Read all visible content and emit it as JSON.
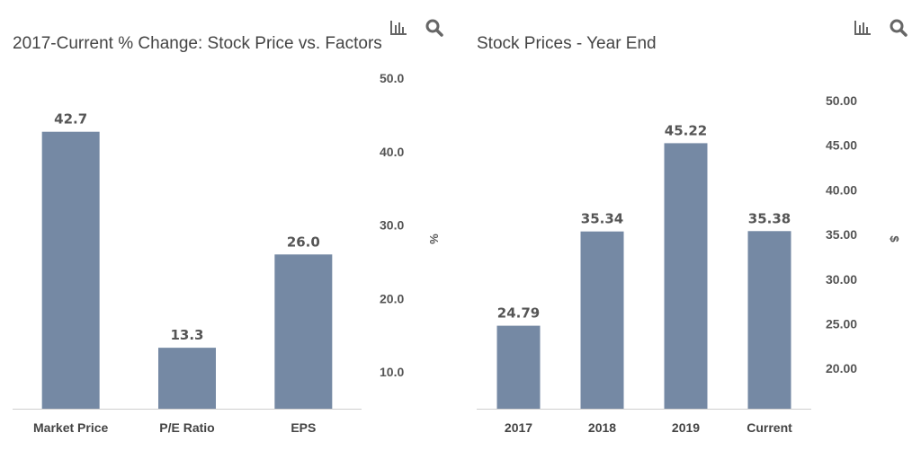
{
  "chart_data": [
    {
      "type": "bar",
      "title": "2017-Current % Change: Stock Price vs. Factors",
      "categories": [
        "Market Price",
        "P/E Ratio",
        "EPS"
      ],
      "values": [
        42.7,
        13.3,
        26.0
      ],
      "value_labels": [
        "42.7",
        "13.3",
        "26.0"
      ],
      "ylabel": "%",
      "ylim": [
        5,
        50
      ],
      "yticks": [
        "10.0",
        "20.0",
        "30.0",
        "40.0",
        "50.0"
      ],
      "ytick_values": [
        10,
        20,
        30,
        40,
        50
      ],
      "y_axis_side": "right",
      "bar_color": "#7589a4",
      "grid": false
    },
    {
      "type": "bar",
      "title": "Stock Prices - Year End",
      "categories": [
        "2017",
        "2018",
        "2019",
        "Current"
      ],
      "values": [
        24.79,
        35.34,
        45.22,
        35.38
      ],
      "value_labels": [
        "24.79",
        "35.34",
        "45.22",
        "35.38"
      ],
      "ylabel": "$",
      "ylim": [
        15.5,
        52.5
      ],
      "yticks": [
        "20.00",
        "25.00",
        "30.00",
        "35.00",
        "40.00",
        "45.00",
        "50.00"
      ],
      "ytick_values": [
        20,
        25,
        30,
        35,
        40,
        45,
        50
      ],
      "y_axis_side": "right",
      "bar_color": "#7589a4",
      "grid": false
    }
  ],
  "icons": {
    "chart": "bar-chart-icon",
    "zoom": "search-icon"
  }
}
